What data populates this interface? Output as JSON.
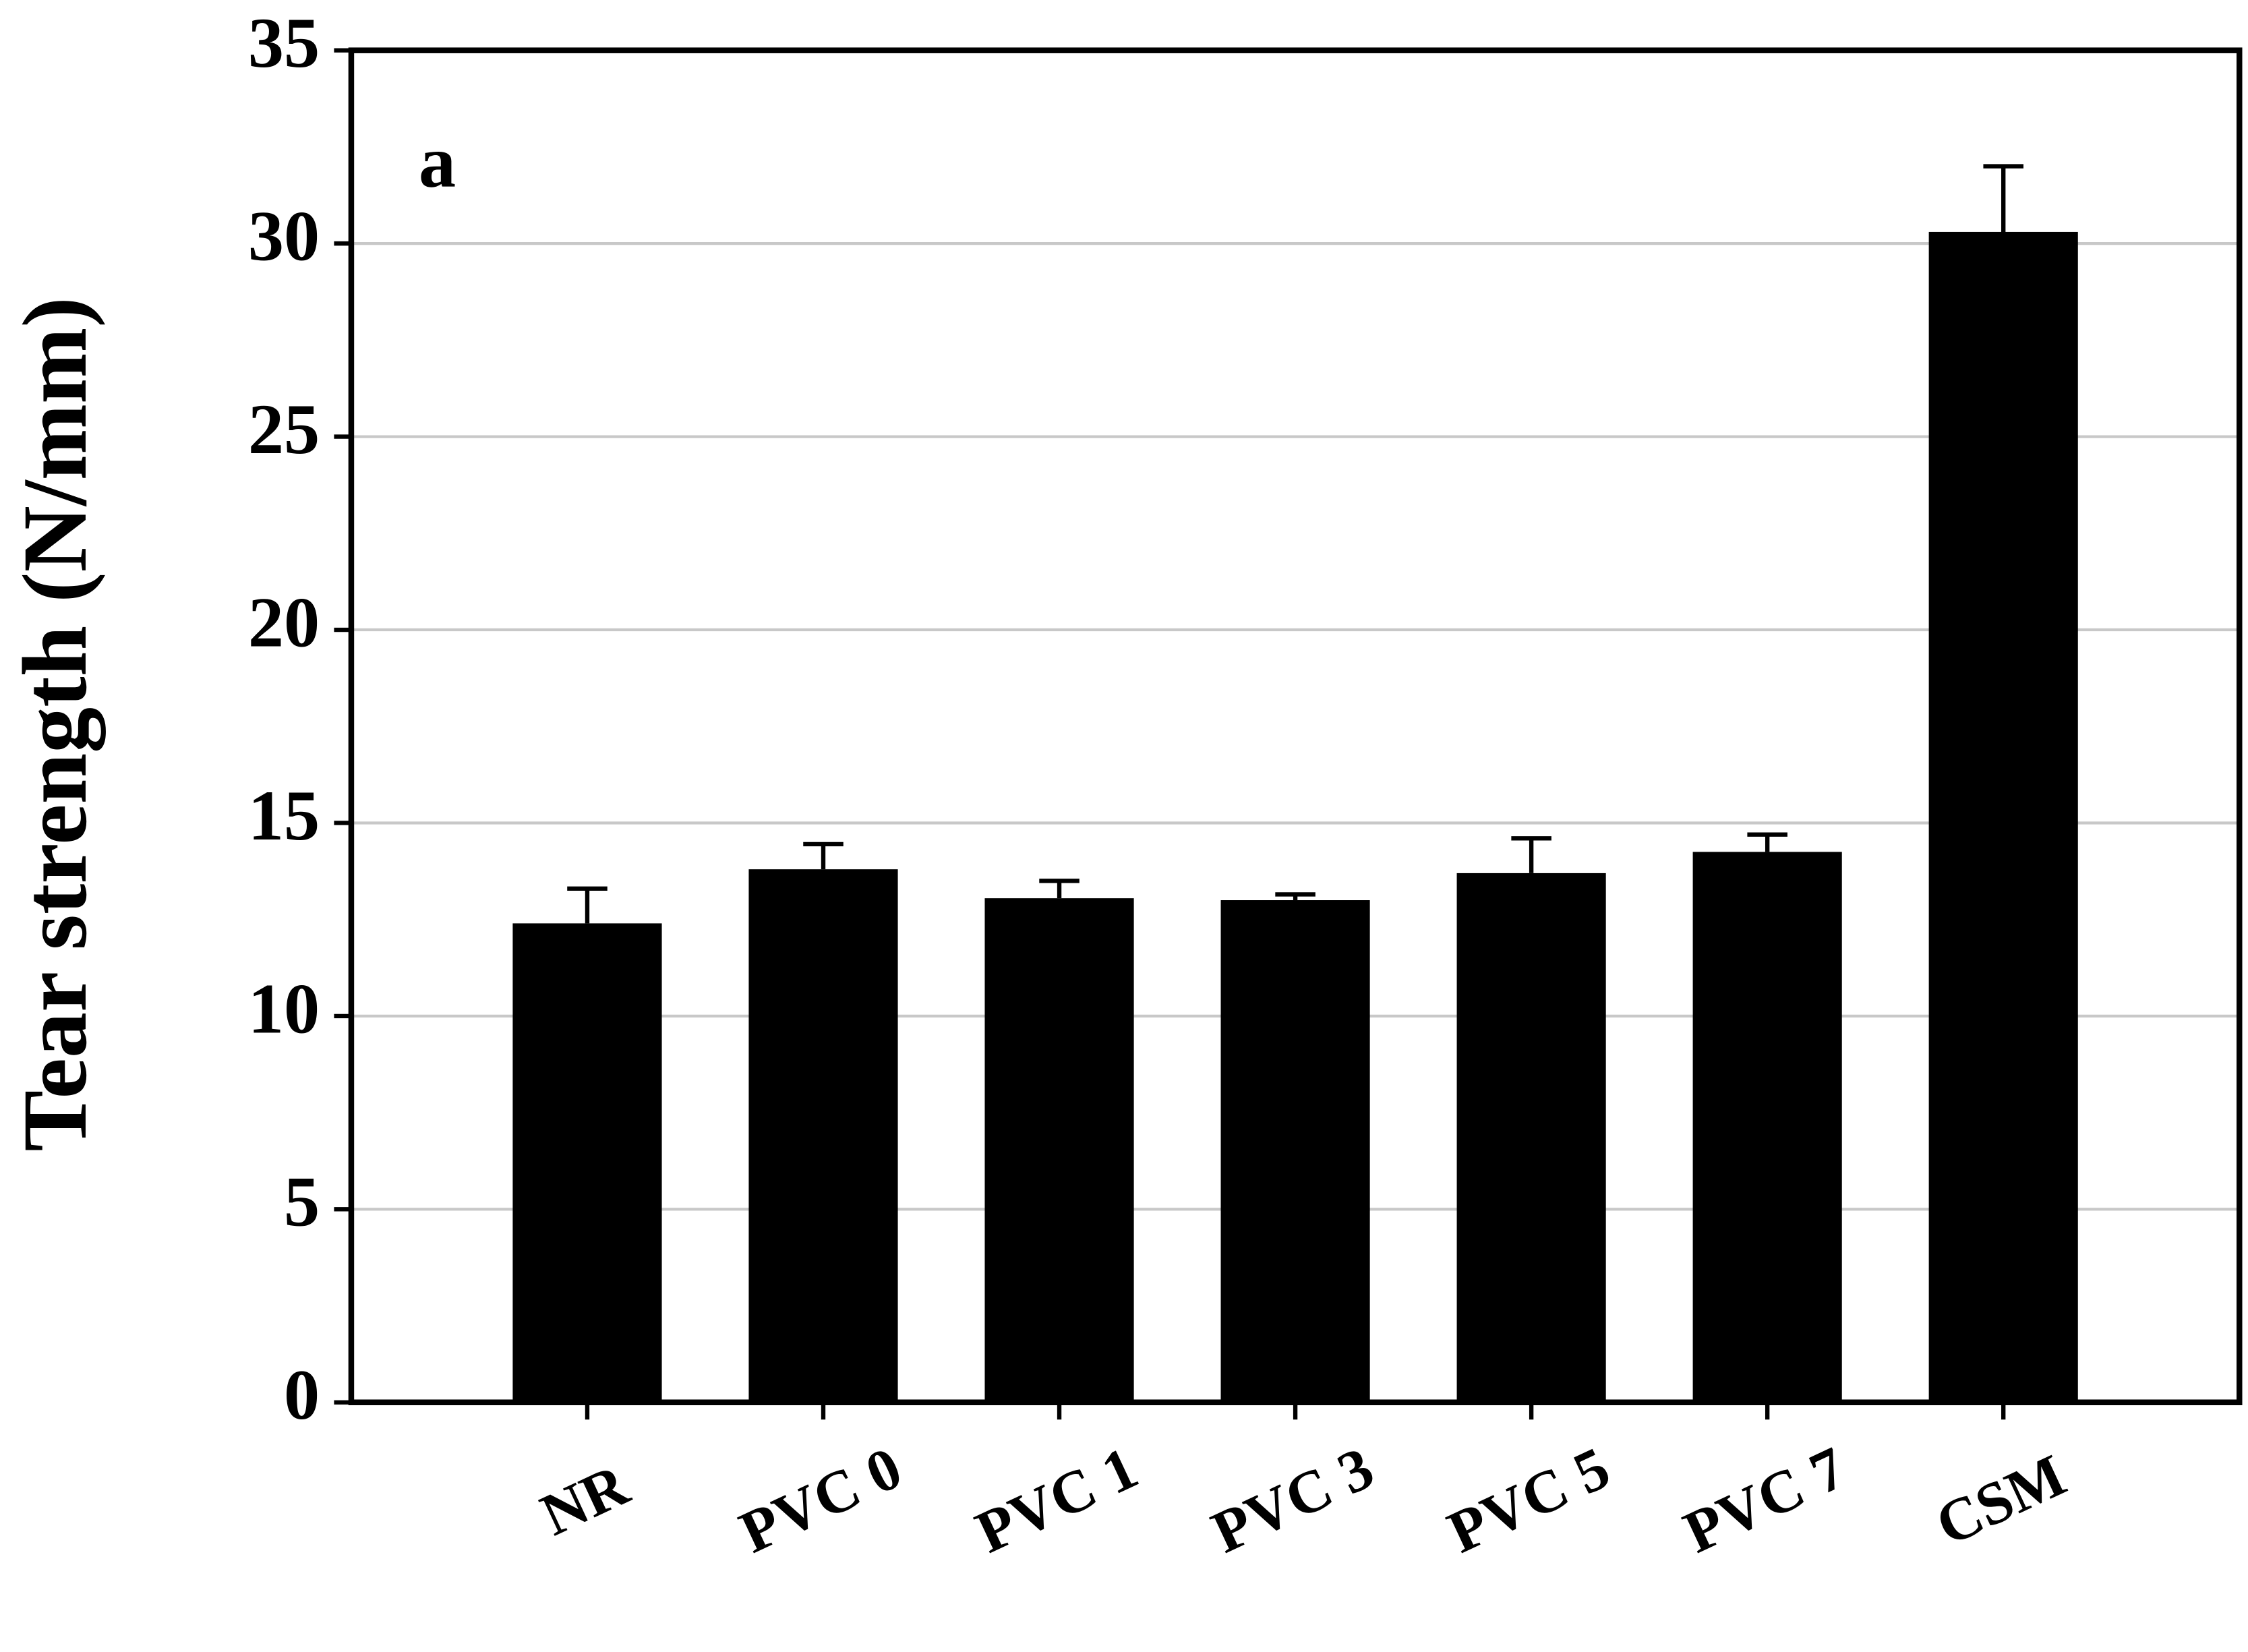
{
  "chart_data": {
    "type": "bar",
    "annotation": "a",
    "y_label": "Tear strength (N/mm)",
    "categories": [
      "NR",
      "PVC 0",
      "PVC 1",
      "PVC 3",
      "PVC 5",
      "PVC 7",
      "CSM"
    ],
    "values": [
      12.4,
      13.8,
      13.05,
      13.0,
      13.7,
      14.25,
      30.3
    ],
    "errors": [
      0.9,
      0.65,
      0.45,
      0.15,
      0.9,
      0.45,
      1.7
    ],
    "color": "#000000",
    "ylim": [
      0,
      35
    ],
    "yticks": [
      0,
      5,
      10,
      15,
      20,
      25,
      30,
      35
    ],
    "grid": true
  }
}
